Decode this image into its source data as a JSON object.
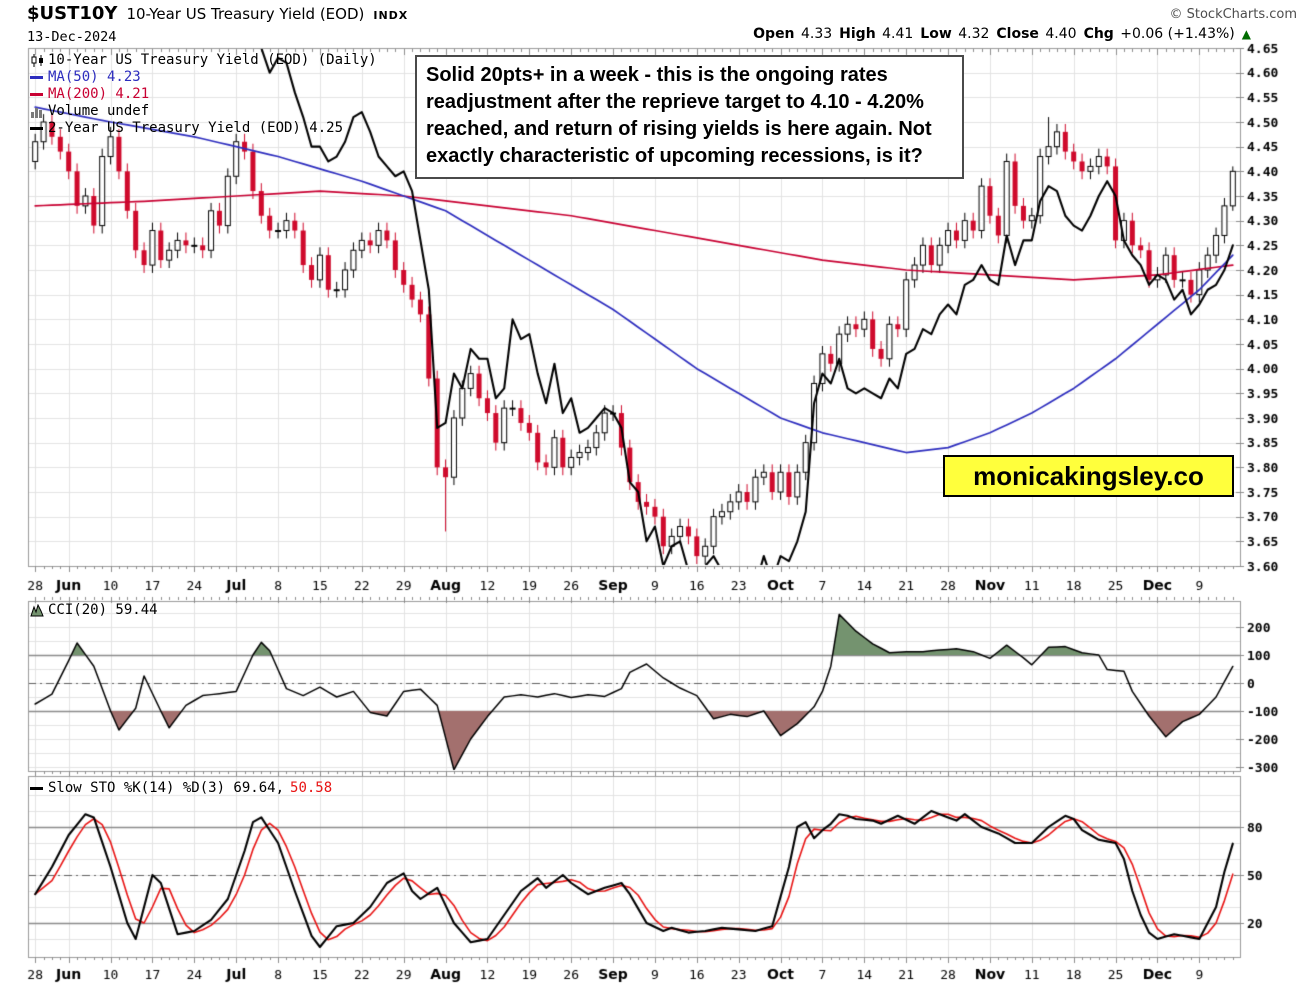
{
  "header": {
    "symbol": "$UST10Y",
    "title": "10-Year US Treasury Yield (EOD)",
    "exchange": "INDX",
    "credit": "© StockCharts.com",
    "date": "13-Dec-2024",
    "quote": [
      {
        "label": "Open",
        "value": "4.33"
      },
      {
        "label": "High",
        "value": "4.41"
      },
      {
        "label": "Low",
        "value": "4.32"
      },
      {
        "label": "Close",
        "value": "4.40"
      },
      {
        "label": "Chg",
        "value": "+0.06 (+1.43%)"
      }
    ],
    "chg_direction_icon": "▲",
    "chg_color": "#006b00"
  },
  "annotation": "Solid 20pts+ in a week - this is the ongoing rates readjustment after the reprieve target to 4.10 - 4.20% reached, and return of rising yields is here again. Not exactly characteristic of upcoming recessions, is it?",
  "watermark": {
    "text": "monicakingsley.co",
    "bg": "#ffff3c"
  },
  "legends": {
    "main": [
      {
        "icon": "candles-icon",
        "label": "10-Year US Treasury Yield (EOD) (Daily)",
        "color": "#000000"
      },
      {
        "icon": "line-swatch",
        "label": "MA(50) 4.23",
        "color": "#2d2dbe"
      },
      {
        "icon": "line-swatch",
        "label": "MA(200) 4.21",
        "color": "#c80032"
      },
      {
        "icon": "volume-icon",
        "label": "Volume undef",
        "color": "#000000"
      },
      {
        "icon": "line-swatch",
        "label": "2-Year US Treasury Yield (EOD) 4.25",
        "color": "#000000"
      }
    ],
    "cci": {
      "icon": "area-icon",
      "label": "CCI(20) 59.44"
    },
    "sto": {
      "icon": "line-swatch",
      "label": "Slow STO %K(14) %D(3) 69.64,",
      "d_value": "50.58",
      "d_color": "#e81414"
    }
  },
  "chart_data": {
    "type": "candlestick",
    "title": "10-Year US Treasury Yield (EOD) with 2-Year overlay, CCI(20) and Slow Stochastics",
    "x_ticks": {
      "labels": [
        "28",
        "Jun",
        "10",
        "17",
        "24",
        "Jul",
        "8",
        "15",
        "22",
        "29",
        "Aug",
        "12",
        "19",
        "26",
        "Sep",
        "9",
        "16",
        "23",
        "Oct",
        "7",
        "14",
        "21",
        "28",
        "Nov",
        "11",
        "18",
        "25",
        "Dec",
        "9"
      ],
      "day_indices": [
        0,
        4,
        9,
        14,
        19,
        24,
        29,
        34,
        39,
        44,
        49,
        54,
        59,
        64,
        69,
        74,
        79,
        84,
        89,
        94,
        99,
        104,
        109,
        114,
        119,
        124,
        129,
        134,
        139
      ]
    },
    "price_panel": {
      "ylim": [
        3.6,
        4.65
      ],
      "ytick_step": 0.05,
      "candle_up_fill": "#ffffff",
      "candle_up_border": "#000000",
      "candle_down_color": "#cf0a2c",
      "ma50_color": "#2d2dbe",
      "ma200_color": "#c80032",
      "line2y_color": "#000000",
      "first_open": 4.42,
      "wick_pad": 0.016,
      "close_10y": [
        4.46,
        4.5,
        4.47,
        4.44,
        4.4,
        4.33,
        4.35,
        4.29,
        4.43,
        4.47,
        4.4,
        4.32,
        4.24,
        4.21,
        4.28,
        4.22,
        4.24,
        4.26,
        4.25,
        4.25,
        4.24,
        4.32,
        4.29,
        4.39,
        4.46,
        4.44,
        4.36,
        4.31,
        4.28,
        4.28,
        4.3,
        4.28,
        4.21,
        4.18,
        4.23,
        4.16,
        4.16,
        4.2,
        4.24,
        4.26,
        4.25,
        4.28,
        4.26,
        4.2,
        4.17,
        4.14,
        4.11,
        3.98,
        3.8,
        3.78,
        3.9,
        3.96,
        3.99,
        3.94,
        3.91,
        3.85,
        3.92,
        3.92,
        3.89,
        3.87,
        3.81,
        3.8,
        3.86,
        3.8,
        3.82,
        3.83,
        3.84,
        3.87,
        3.91,
        3.91,
        3.84,
        3.77,
        3.73,
        3.72,
        3.7,
        3.64,
        3.66,
        3.68,
        3.66,
        3.62,
        3.64,
        3.7,
        3.71,
        3.73,
        3.75,
        3.73,
        3.78,
        3.79,
        3.75,
        3.79,
        3.74,
        3.79,
        3.85,
        3.97,
        4.03,
        4.01,
        4.07,
        4.09,
        4.08,
        4.1,
        4.04,
        4.02,
        4.09,
        4.08,
        4.18,
        4.21,
        4.25,
        4.21,
        4.25,
        4.28,
        4.26,
        4.3,
        4.28,
        4.37,
        4.31,
        4.27,
        4.42,
        4.33,
        4.3,
        4.31,
        4.43,
        4.45,
        4.48,
        4.44,
        4.42,
        4.4,
        4.41,
        4.43,
        4.41,
        4.26,
        4.3,
        4.25,
        4.24,
        4.18,
        4.19,
        4.23,
        4.18,
        4.18,
        4.15,
        4.2,
        4.23,
        4.27,
        4.33,
        4.4
      ],
      "wick_overrides": {
        "9": {
          "high": 4.49
        },
        "49": {
          "low": 3.67
        },
        "121": {
          "high": 4.51
        },
        "143": {
          "high": 4.41,
          "low": 4.32
        }
      },
      "ust2y": [
        4.95,
        4.93,
        4.91,
        4.89,
        4.82,
        4.78,
        4.76,
        4.83,
        4.89,
        4.88,
        4.82,
        4.76,
        4.7,
        4.71,
        4.76,
        4.72,
        4.74,
        4.73,
        4.73,
        4.73,
        4.74,
        4.75,
        4.71,
        4.74,
        4.77,
        4.74,
        4.7,
        4.65,
        4.6,
        4.63,
        4.62,
        4.56,
        4.51,
        4.45,
        4.45,
        4.42,
        4.43,
        4.46,
        4.51,
        4.52,
        4.48,
        4.43,
        4.41,
        4.39,
        4.4,
        4.36,
        4.26,
        4.16,
        3.88,
        3.89,
        3.99,
        3.96,
        4.04,
        4.02,
        4.02,
        3.94,
        3.96,
        4.1,
        4.06,
        4.07,
        3.99,
        3.93,
        4.01,
        3.91,
        3.94,
        3.87,
        3.88,
        3.9,
        3.92,
        3.91,
        3.88,
        3.77,
        3.75,
        3.65,
        3.68,
        3.6,
        3.64,
        3.65,
        3.59,
        3.56,
        3.6,
        3.62,
        3.59,
        3.56,
        3.58,
        3.52,
        3.56,
        3.62,
        3.57,
        3.62,
        3.61,
        3.65,
        3.71,
        3.93,
        3.99,
        3.97,
        4.02,
        3.96,
        3.95,
        3.96,
        3.95,
        3.94,
        3.98,
        3.96,
        4.03,
        4.04,
        4.08,
        4.07,
        4.11,
        4.13,
        4.11,
        4.17,
        4.18,
        4.21,
        4.18,
        4.17,
        4.27,
        4.21,
        4.26,
        4.26,
        4.34,
        4.37,
        4.36,
        4.31,
        4.29,
        4.28,
        4.31,
        4.35,
        4.38,
        4.35,
        4.26,
        4.23,
        4.21,
        4.17,
        4.19,
        4.18,
        4.14,
        4.16,
        4.11,
        4.13,
        4.16,
        4.17,
        4.2,
        4.25
      ],
      "ma50_keyframes": [
        [
          0,
          4.53
        ],
        [
          9,
          4.5
        ],
        [
          19,
          4.47
        ],
        [
          29,
          4.43
        ],
        [
          39,
          4.38
        ],
        [
          44,
          4.35
        ],
        [
          49,
          4.32
        ],
        [
          54,
          4.27
        ],
        [
          59,
          4.22
        ],
        [
          64,
          4.17
        ],
        [
          69,
          4.12
        ],
        [
          74,
          4.06
        ],
        [
          79,
          4.0
        ],
        [
          84,
          3.95
        ],
        [
          89,
          3.9
        ],
        [
          94,
          3.87
        ],
        [
          99,
          3.85
        ],
        [
          104,
          3.83
        ],
        [
          109,
          3.84
        ],
        [
          114,
          3.87
        ],
        [
          119,
          3.91
        ],
        [
          124,
          3.96
        ],
        [
          129,
          4.02
        ],
        [
          134,
          4.09
        ],
        [
          139,
          4.16
        ],
        [
          143,
          4.23
        ]
      ],
      "ma200_keyframes": [
        [
          0,
          4.33
        ],
        [
          14,
          4.34
        ],
        [
          24,
          4.35
        ],
        [
          34,
          4.36
        ],
        [
          44,
          4.35
        ],
        [
          54,
          4.33
        ],
        [
          64,
          4.31
        ],
        [
          74,
          4.28
        ],
        [
          84,
          4.25
        ],
        [
          94,
          4.22
        ],
        [
          104,
          4.2
        ],
        [
          114,
          4.19
        ],
        [
          124,
          4.18
        ],
        [
          134,
          4.19
        ],
        [
          143,
          4.21
        ]
      ]
    },
    "cci_panel": {
      "yticks": [
        200,
        100,
        0,
        -100,
        -200,
        -300
      ],
      "band_lines": [
        100,
        -100
      ],
      "center_line": 0,
      "pos_fill": "#74936f",
      "neg_fill": "#a3706e",
      "line_color": "#000000",
      "keyframes": [
        [
          0,
          -75
        ],
        [
          2,
          -40
        ],
        [
          4,
          80
        ],
        [
          5,
          143
        ],
        [
          7,
          60
        ],
        [
          9,
          -100
        ],
        [
          10,
          -168
        ],
        [
          12,
          -90
        ],
        [
          13,
          25
        ],
        [
          15,
          -100
        ],
        [
          16,
          -160
        ],
        [
          18,
          -80
        ],
        [
          20,
          -45
        ],
        [
          22,
          -38
        ],
        [
          24,
          -30
        ],
        [
          26,
          100
        ],
        [
          27,
          145
        ],
        [
          28,
          115
        ],
        [
          30,
          -20
        ],
        [
          32,
          -45
        ],
        [
          34,
          -15
        ],
        [
          36,
          -50
        ],
        [
          38,
          -30
        ],
        [
          40,
          -105
        ],
        [
          42,
          -118
        ],
        [
          44,
          -30
        ],
        [
          46,
          -22
        ],
        [
          48,
          -80
        ],
        [
          50,
          -310
        ],
        [
          52,
          -200
        ],
        [
          54,
          -120
        ],
        [
          56,
          -50
        ],
        [
          58,
          -42
        ],
        [
          60,
          -50
        ],
        [
          62,
          -38
        ],
        [
          64,
          -52
        ],
        [
          66,
          -42
        ],
        [
          68,
          -48
        ],
        [
          70,
          -20
        ],
        [
          71,
          38
        ],
        [
          73,
          68
        ],
        [
          75,
          18
        ],
        [
          77,
          -18
        ],
        [
          79,
          -45
        ],
        [
          81,
          -128
        ],
        [
          83,
          -112
        ],
        [
          85,
          -120
        ],
        [
          87,
          -100
        ],
        [
          89,
          -188
        ],
        [
          91,
          -145
        ],
        [
          93,
          -85
        ],
        [
          94,
          -30
        ],
        [
          95,
          60
        ],
        [
          96,
          245
        ],
        [
          98,
          185
        ],
        [
          100,
          140
        ],
        [
          102,
          108
        ],
        [
          104,
          112
        ],
        [
          106,
          112
        ],
        [
          108,
          118
        ],
        [
          110,
          122
        ],
        [
          112,
          112
        ],
        [
          114,
          88
        ],
        [
          116,
          135
        ],
        [
          118,
          90
        ],
        [
          119,
          65
        ],
        [
          121,
          128
        ],
        [
          123,
          130
        ],
        [
          125,
          108
        ],
        [
          127,
          100
        ],
        [
          128,
          48
        ],
        [
          130,
          42
        ],
        [
          131,
          -30
        ],
        [
          133,
          -118
        ],
        [
          135,
          -192
        ],
        [
          137,
          -138
        ],
        [
          139,
          -112
        ],
        [
          141,
          -50
        ],
        [
          142,
          5
        ],
        [
          143,
          59
        ]
      ]
    },
    "sto_panel": {
      "yticks": [
        80,
        50,
        20
      ],
      "band_lines": [
        80,
        20
      ],
      "center_line": 50,
      "k_color": "#000000",
      "d_color": "#e81414",
      "d_smoothing": 3,
      "k_keyframes": [
        [
          0,
          38
        ],
        [
          2,
          55
        ],
        [
          4,
          75
        ],
        [
          6,
          88
        ],
        [
          7,
          86
        ],
        [
          9,
          55
        ],
        [
          11,
          20
        ],
        [
          12,
          10
        ],
        [
          14,
          50
        ],
        [
          15,
          45
        ],
        [
          17,
          13
        ],
        [
          19,
          15
        ],
        [
          21,
          22
        ],
        [
          23,
          35
        ],
        [
          25,
          65
        ],
        [
          26,
          83
        ],
        [
          27,
          86
        ],
        [
          29,
          70
        ],
        [
          31,
          40
        ],
        [
          33,
          12
        ],
        [
          34,
          5
        ],
        [
          36,
          18
        ],
        [
          38,
          20
        ],
        [
          40,
          30
        ],
        [
          42,
          45
        ],
        [
          44,
          51
        ],
        [
          45,
          40
        ],
        [
          46,
          35
        ],
        [
          48,
          42
        ],
        [
          50,
          20
        ],
        [
          52,
          8
        ],
        [
          54,
          10
        ],
        [
          56,
          25
        ],
        [
          58,
          40
        ],
        [
          60,
          48
        ],
        [
          61,
          42
        ],
        [
          63,
          50
        ],
        [
          64,
          45
        ],
        [
          66,
          38
        ],
        [
          68,
          42
        ],
        [
          70,
          45
        ],
        [
          71,
          38
        ],
        [
          73,
          20
        ],
        [
          75,
          15
        ],
        [
          76,
          17
        ],
        [
          78,
          14
        ],
        [
          80,
          15
        ],
        [
          82,
          17
        ],
        [
          84,
          16
        ],
        [
          86,
          15
        ],
        [
          88,
          18
        ],
        [
          90,
          55
        ],
        [
          91,
          80
        ],
        [
          92,
          83
        ],
        [
          93,
          73
        ],
        [
          94,
          78
        ],
        [
          95,
          82
        ],
        [
          96,
          88
        ],
        [
          97,
          87
        ],
        [
          98,
          85
        ],
        [
          100,
          84
        ],
        [
          101,
          82
        ],
        [
          103,
          87
        ],
        [
          105,
          82
        ],
        [
          107,
          90
        ],
        [
          108,
          88
        ],
        [
          110,
          84
        ],
        [
          111,
          88
        ],
        [
          113,
          80
        ],
        [
          115,
          76
        ],
        [
          117,
          70
        ],
        [
          119,
          70
        ],
        [
          120,
          75
        ],
        [
          121,
          80
        ],
        [
          123,
          87
        ],
        [
          124,
          85
        ],
        [
          125,
          78
        ],
        [
          127,
          72
        ],
        [
          129,
          70
        ],
        [
          130,
          60
        ],
        [
          131,
          40
        ],
        [
          132,
          25
        ],
        [
          133,
          14
        ],
        [
          134,
          10
        ],
        [
          136,
          13
        ],
        [
          138,
          11
        ],
        [
          139,
          10
        ],
        [
          141,
          30
        ],
        [
          142,
          52
        ],
        [
          143,
          69.6
        ]
      ]
    }
  }
}
